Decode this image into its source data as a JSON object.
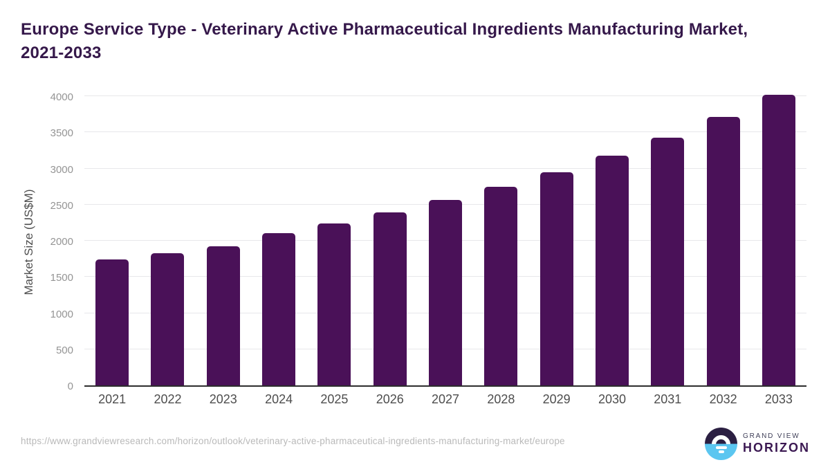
{
  "header": {
    "title_line1": "Europe Service Type - Veterinary Active Pharmaceutical Ingredients Manufacturing Market,",
    "title_line2": "2021-2033"
  },
  "chart_data": {
    "type": "bar",
    "title": "Europe Service Type - Veterinary Active Pharmaceutical Ingredients Manufacturing Market, 2021-2033",
    "categories": [
      "2021",
      "2022",
      "2023",
      "2024",
      "2025",
      "2026",
      "2027",
      "2028",
      "2029",
      "2030",
      "2031",
      "2032",
      "2033"
    ],
    "values": [
      1740,
      1830,
      1920,
      2110,
      2240,
      2395,
      2565,
      2750,
      2950,
      3180,
      3430,
      3710,
      4015
    ],
    "xlabel": "",
    "ylabel": "Market Size (US$M)",
    "ylim": [
      0,
      4000
    ],
    "ytick_step": 500,
    "yticks": [
      0,
      500,
      1000,
      1500,
      2000,
      2500,
      3000,
      3500,
      4000
    ],
    "grid": true,
    "legend_position": "none",
    "bar_color": "#4a1158"
  },
  "footer": {
    "url": "https://www.grandviewresearch.com/horizon/outlook/veterinary-active-pharmaceutical-ingredients-manufacturing-market/europe",
    "logo_top": "GRAND VIEW",
    "logo_bottom": "HORIZON"
  },
  "colors": {
    "title_text": "#35184a",
    "bar": "#4a1158",
    "axis_line": "#2d2d2d",
    "gridline": "#e7e7ea",
    "y_tick_text": "#949494",
    "x_tick_text": "#4d4d4d",
    "url_text": "#b9b9b9",
    "logo_dark": "#2b1f42",
    "logo_blue": "#5bc6f0"
  }
}
